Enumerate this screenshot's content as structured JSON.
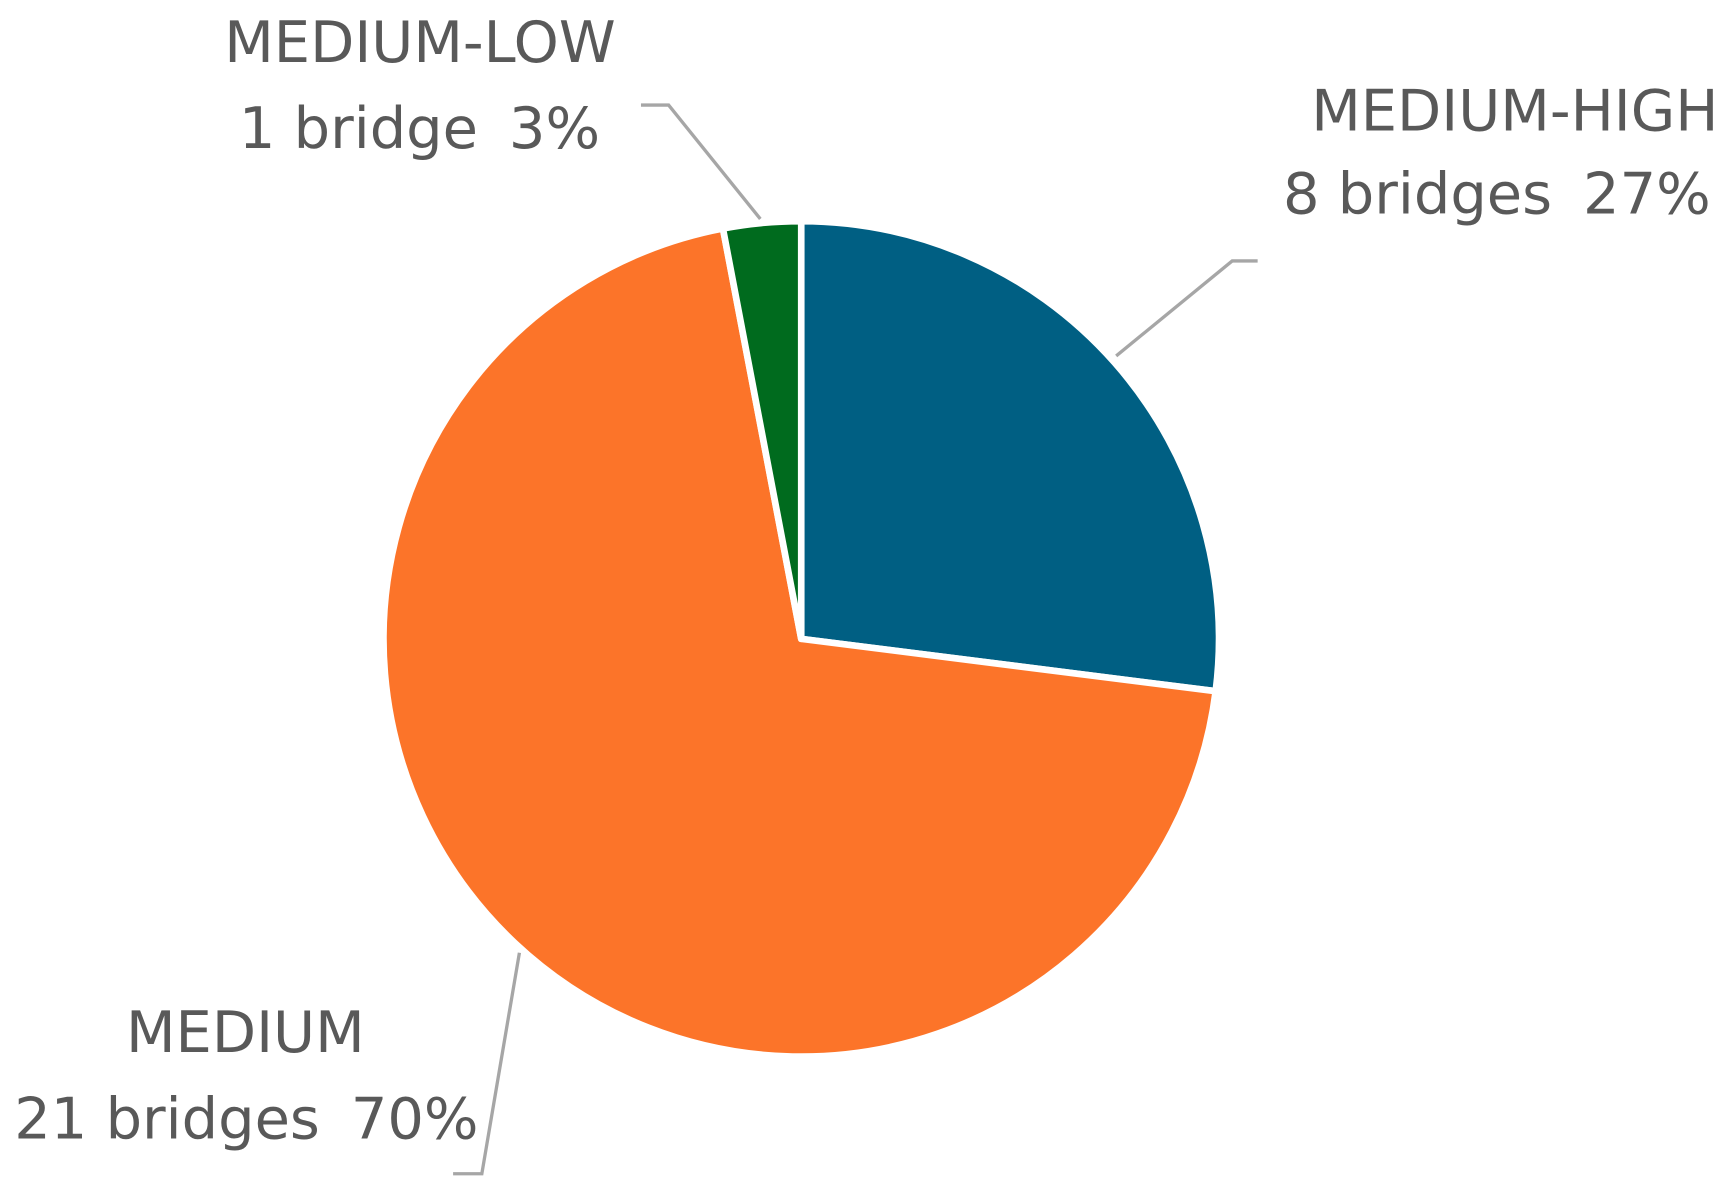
{
  "chart_data": {
    "type": "pie",
    "categories": [
      "MEDIUM-HIGH",
      "MEDIUM",
      "MEDIUM-LOW"
    ],
    "values": [
      27,
      70,
      3
    ],
    "value_labels": [
      "27%",
      "70%",
      "3%"
    ],
    "counts": [
      8,
      21,
      1
    ],
    "count_labels": [
      "8 bridges",
      "21 bridges",
      "1 bridge"
    ],
    "colors": [
      "#005f83",
      "#fc7429",
      "#006b1e"
    ]
  }
}
